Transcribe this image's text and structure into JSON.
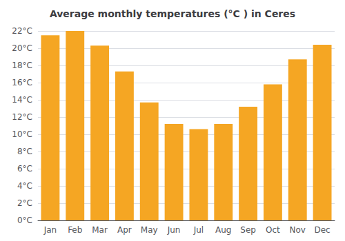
{
  "chart_data": {
    "type": "bar",
    "title": "Average monthly temperatures (°C ) in Ceres",
    "categories": [
      "Jan",
      "Feb",
      "Mar",
      "Apr",
      "May",
      "Jun",
      "Jul",
      "Aug",
      "Sep",
      "Oct",
      "Nov",
      "Dec"
    ],
    "values": [
      21.5,
      22.0,
      20.3,
      17.3,
      13.7,
      11.2,
      10.6,
      11.2,
      13.2,
      15.8,
      18.7,
      20.4
    ],
    "color": "#F5A623",
    "ylim": [
      0,
      22
    ],
    "yticks": [
      {
        "value": 0,
        "label": "0°C"
      },
      {
        "value": 2,
        "label": "2°C"
      },
      {
        "value": 4,
        "label": "4°C"
      },
      {
        "value": 6,
        "label": "6°C"
      },
      {
        "value": 8,
        "label": "8°C"
      },
      {
        "value": 10,
        "label": "10°C"
      },
      {
        "value": 12,
        "label": "12°C"
      },
      {
        "value": 14,
        "label": "14°C"
      },
      {
        "value": 16,
        "label": "16°C"
      },
      {
        "value": 18,
        "label": "18°C"
      },
      {
        "value": 20,
        "label": "20°C"
      },
      {
        "value": 22,
        "label": "22°C"
      }
    ],
    "grid": true
  }
}
